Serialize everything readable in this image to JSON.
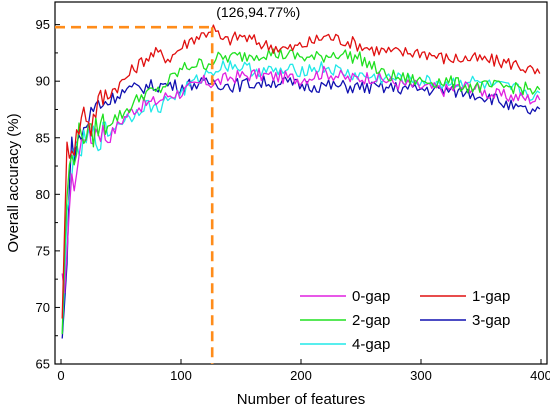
{
  "chart_data": {
    "type": "line",
    "xlabel": "Number of features",
    "ylabel": "Overall accuracy (%)",
    "xlim": [
      -5,
      405
    ],
    "ylim": [
      65,
      97
    ],
    "xticks": [
      0,
      100,
      200,
      300,
      400
    ],
    "yticks": [
      65,
      70,
      75,
      80,
      85,
      90,
      95
    ],
    "grid": false,
    "legend_placement": "bottom-right",
    "annotation": {
      "text": "(126,94.77%)",
      "x": 126,
      "y": 94.77,
      "color": "#ff8c1a"
    },
    "series": [
      {
        "name": "0-gap",
        "color": "#e020e0",
        "x": [
          1,
          3,
          5,
          8,
          12,
          16,
          20,
          25,
          30,
          40,
          50,
          60,
          70,
          80,
          90,
          100,
          110,
          120,
          126,
          140,
          160,
          180,
          200,
          220,
          240,
          260,
          280,
          300,
          320,
          340,
          360,
          380,
          400
        ],
        "y": [
          72,
          70.2,
          76,
          80.5,
          81.5,
          84,
          86,
          84.8,
          86,
          85,
          86.5,
          87.5,
          88,
          88.2,
          88.8,
          89,
          89.5,
          90,
          89.8,
          90.3,
          90.6,
          90.4,
          90.2,
          90.8,
          90.2,
          90.4,
          89.8,
          89.5,
          89.2,
          89.6,
          88.8,
          88.6,
          88.3
        ]
      },
      {
        "name": "1-gap",
        "color": "#e01010",
        "x": [
          1,
          3,
          5,
          8,
          12,
          16,
          20,
          25,
          30,
          40,
          50,
          60,
          70,
          80,
          90,
          100,
          110,
          120,
          126,
          135,
          150,
          170,
          190,
          210,
          220,
          240,
          260,
          280,
          300,
          320,
          340,
          360,
          380,
          400
        ],
        "y": [
          70,
          76,
          84,
          84.5,
          84.5,
          86.5,
          87.5,
          86,
          88,
          89,
          89.8,
          91,
          92,
          92.5,
          92,
          93,
          93.8,
          94.2,
          94.77,
          93.5,
          94,
          93.2,
          92.8,
          93.5,
          94,
          93.5,
          92.8,
          92.5,
          92.6,
          92,
          92,
          91.8,
          91.5,
          90.5
        ]
      },
      {
        "name": "2-gap",
        "color": "#20e020",
        "x": [
          1,
          3,
          5,
          8,
          12,
          16,
          20,
          25,
          30,
          40,
          50,
          60,
          70,
          80,
          90,
          100,
          110,
          120,
          130,
          150,
          170,
          190,
          210,
          230,
          250,
          270,
          300,
          320,
          340,
          360,
          380,
          400
        ],
        "y": [
          68,
          74,
          80,
          83,
          84,
          85.5,
          85.5,
          85,
          86,
          86.5,
          87,
          88,
          89,
          89,
          90,
          91,
          91.5,
          91.5,
          92,
          92.2,
          92.5,
          92.3,
          92,
          92.5,
          92,
          90.5,
          90,
          90,
          89.5,
          89.5,
          89.5,
          89
        ]
      },
      {
        "name": "3-gap",
        "color": "#1010b0",
        "x": [
          1,
          3,
          5,
          8,
          12,
          16,
          20,
          25,
          30,
          40,
          50,
          60,
          70,
          80,
          90,
          100,
          110,
          120,
          126,
          140,
          160,
          180,
          200,
          220,
          240,
          260,
          280,
          300,
          320,
          340,
          360,
          380,
          400
        ],
        "y": [
          67,
          70,
          75,
          84,
          84,
          85,
          86,
          87,
          88,
          88.3,
          89,
          89.3,
          89.5,
          89.6,
          89.7,
          89.5,
          89.8,
          89.7,
          90,
          89.6,
          89.8,
          90,
          89.6,
          89.6,
          89.5,
          89.4,
          89.4,
          89.3,
          89.2,
          89,
          88.5,
          87.5,
          87.2
        ]
      },
      {
        "name": "4-gap",
        "color": "#20e8e8",
        "x": [
          1,
          3,
          5,
          8,
          12,
          16,
          20,
          25,
          30,
          40,
          50,
          60,
          70,
          80,
          90,
          100,
          110,
          120,
          126,
          140,
          160,
          180,
          200,
          220,
          240,
          260,
          280,
          300,
          320,
          340,
          360,
          380,
          400
        ],
        "y": [
          66.8,
          72,
          78,
          82,
          83,
          84,
          84.5,
          85,
          85,
          85.5,
          86.5,
          87,
          88,
          87.5,
          88.5,
          89,
          89.8,
          90.5,
          91,
          91.5,
          91,
          90.8,
          91,
          91.2,
          90.6,
          90.3,
          90.2,
          90,
          89.8,
          90,
          89.5,
          89.3,
          88.5
        ]
      }
    ]
  }
}
